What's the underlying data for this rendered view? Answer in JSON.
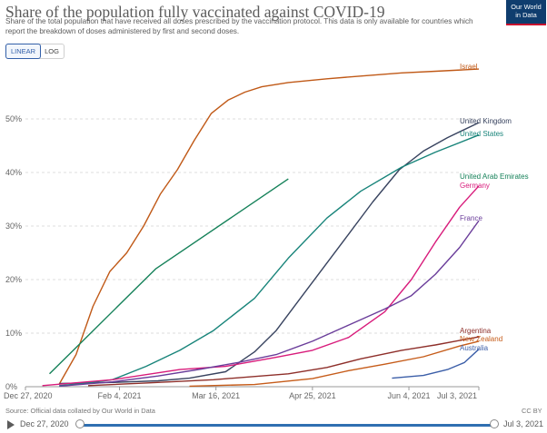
{
  "header": {
    "title": "Share of the population fully vaccinated against COVID-19",
    "subtitle": "Share of the total population that have received all doses prescribed by the vaccination protocol. This data is only available for countries which report the breakdown of doses administered by first and second doses.",
    "logo_line1": "Our World",
    "logo_line2": "in Data"
  },
  "scale_toggle": {
    "linear": "LINEAR",
    "log": "LOG",
    "selected": "LINEAR"
  },
  "footer": {
    "source": "Source: Official data collated by Our World in Data",
    "license": "CC BY"
  },
  "timeline": {
    "start": "Dec 27, 2020",
    "end": "Jul 3, 2021",
    "start_fraction": 0,
    "end_fraction": 1
  },
  "chart_data": {
    "type": "line",
    "x_ticks": [
      "Dec 27, 2020",
      "Feb 4, 2021",
      "Mar 16, 2021",
      "Apr 25, 2021",
      "Jun 4, 2021",
      "Jul 3, 2021"
    ],
    "x_range": [
      "2020-12-27",
      "2021-07-03"
    ],
    "y_ticks": [
      "0%",
      "10%",
      "20%",
      "30%",
      "40%",
      "50%"
    ],
    "y_range": [
      0,
      60
    ],
    "grid": "horizontal-dashed",
    "series": [
      {
        "name": "Israel",
        "color": "#c05917",
        "points": [
          [
            "2021-01-10",
            0.5
          ],
          [
            "2021-01-17",
            6
          ],
          [
            "2021-01-24",
            15
          ],
          [
            "2021-01-31",
            21.5
          ],
          [
            "2021-02-07",
            25
          ],
          [
            "2021-02-14",
            30
          ],
          [
            "2021-02-21",
            36
          ],
          [
            "2021-02-28",
            40.5
          ],
          [
            "2021-03-07",
            46
          ],
          [
            "2021-03-14",
            51
          ],
          [
            "2021-03-21",
            53.5
          ],
          [
            "2021-03-28",
            55
          ],
          [
            "2021-04-04",
            56
          ],
          [
            "2021-04-15",
            56.8
          ],
          [
            "2021-05-01",
            57.5
          ],
          [
            "2021-05-15",
            58
          ],
          [
            "2021-06-01",
            58.6
          ],
          [
            "2021-06-15",
            58.9
          ],
          [
            "2021-07-03",
            59.3
          ]
        ]
      },
      {
        "name": "United Kingdom",
        "color": "#38435f",
        "points": [
          [
            "2021-01-10",
            0.6
          ],
          [
            "2021-02-01",
            0.8
          ],
          [
            "2021-02-20",
            1.1
          ],
          [
            "2021-03-05",
            1.6
          ],
          [
            "2021-03-20",
            2.8
          ],
          [
            "2021-04-01",
            6.5
          ],
          [
            "2021-04-10",
            10.5
          ],
          [
            "2021-04-20",
            16.5
          ],
          [
            "2021-04-30",
            22.5
          ],
          [
            "2021-05-10",
            28.5
          ],
          [
            "2021-05-20",
            34.5
          ],
          [
            "2021-05-31",
            40.5
          ],
          [
            "2021-06-10",
            44
          ],
          [
            "2021-06-20",
            46.5
          ],
          [
            "2021-07-03",
            49.3
          ]
        ]
      },
      {
        "name": "United States",
        "color": "#18847a",
        "points": [
          [
            "2021-01-10",
            0.2
          ],
          [
            "2021-01-20",
            0.6
          ],
          [
            "2021-02-01",
            1.3
          ],
          [
            "2021-02-15",
            3.8
          ],
          [
            "2021-03-01",
            6.8
          ],
          [
            "2021-03-15",
            10.5
          ],
          [
            "2021-04-01",
            16.5
          ],
          [
            "2021-04-15",
            24
          ],
          [
            "2021-05-01",
            31.5
          ],
          [
            "2021-05-15",
            36.5
          ],
          [
            "2021-06-01",
            41
          ],
          [
            "2021-06-15",
            43.8
          ],
          [
            "2021-07-03",
            47
          ]
        ]
      },
      {
        "name": "United Arab Emirates",
        "color": "#158159",
        "points": [
          [
            "2021-01-06",
            2.4
          ],
          [
            "2021-02-19",
            22
          ],
          [
            "2021-04-15",
            38.8
          ]
        ]
      },
      {
        "name": "Germany",
        "color": "#d81b7b",
        "points": [
          [
            "2021-01-03",
            0.2
          ],
          [
            "2021-02-01",
            1.3
          ],
          [
            "2021-03-01",
            3.2
          ],
          [
            "2021-03-20",
            3.8
          ],
          [
            "2021-04-10",
            5.5
          ],
          [
            "2021-04-25",
            6.8
          ],
          [
            "2021-05-10",
            9.2
          ],
          [
            "2021-05-25",
            14
          ],
          [
            "2021-06-05",
            20
          ],
          [
            "2021-06-15",
            27
          ],
          [
            "2021-06-25",
            33.5
          ],
          [
            "2021-07-03",
            37.5
          ]
        ]
      },
      {
        "name": "France",
        "color": "#6a3d9a",
        "points": [
          [
            "2021-01-10",
            0.1
          ],
          [
            "2021-02-01",
            0.9
          ],
          [
            "2021-02-20",
            2
          ],
          [
            "2021-03-10",
            3.3
          ],
          [
            "2021-03-25",
            4.5
          ],
          [
            "2021-04-10",
            6
          ],
          [
            "2021-04-25",
            8.5
          ],
          [
            "2021-05-10",
            11.5
          ],
          [
            "2021-05-25",
            14.5
          ],
          [
            "2021-06-05",
            17
          ],
          [
            "2021-06-15",
            21
          ],
          [
            "2021-06-25",
            26
          ],
          [
            "2021-07-03",
            31
          ]
        ]
      },
      {
        "name": "Argentina",
        "color": "#8e2f2a",
        "points": [
          [
            "2021-01-22",
            0.2
          ],
          [
            "2021-02-15",
            0.7
          ],
          [
            "2021-03-15",
            1.3
          ],
          [
            "2021-04-15",
            2.4
          ],
          [
            "2021-05-01",
            3.6
          ],
          [
            "2021-05-15",
            5.2
          ],
          [
            "2021-06-01",
            6.8
          ],
          [
            "2021-06-15",
            7.8
          ],
          [
            "2021-07-03",
            9.3
          ]
        ]
      },
      {
        "name": "New Zealand",
        "color": "#c65c1a",
        "points": [
          [
            "2021-03-05",
            0.1
          ],
          [
            "2021-04-01",
            0.4
          ],
          [
            "2021-04-25",
            1.5
          ],
          [
            "2021-05-10",
            3
          ],
          [
            "2021-05-25",
            4.2
          ],
          [
            "2021-06-10",
            5.6
          ],
          [
            "2021-06-25",
            7.6
          ],
          [
            "2021-07-03",
            8.5
          ]
        ]
      },
      {
        "name": "Australia",
        "color": "#3b5ea8",
        "points": [
          [
            "2021-05-28",
            1.6
          ],
          [
            "2021-06-10",
            2.1
          ],
          [
            "2021-06-20",
            3.2
          ],
          [
            "2021-06-27",
            4.5
          ],
          [
            "2021-07-03",
            7
          ]
        ]
      }
    ]
  }
}
